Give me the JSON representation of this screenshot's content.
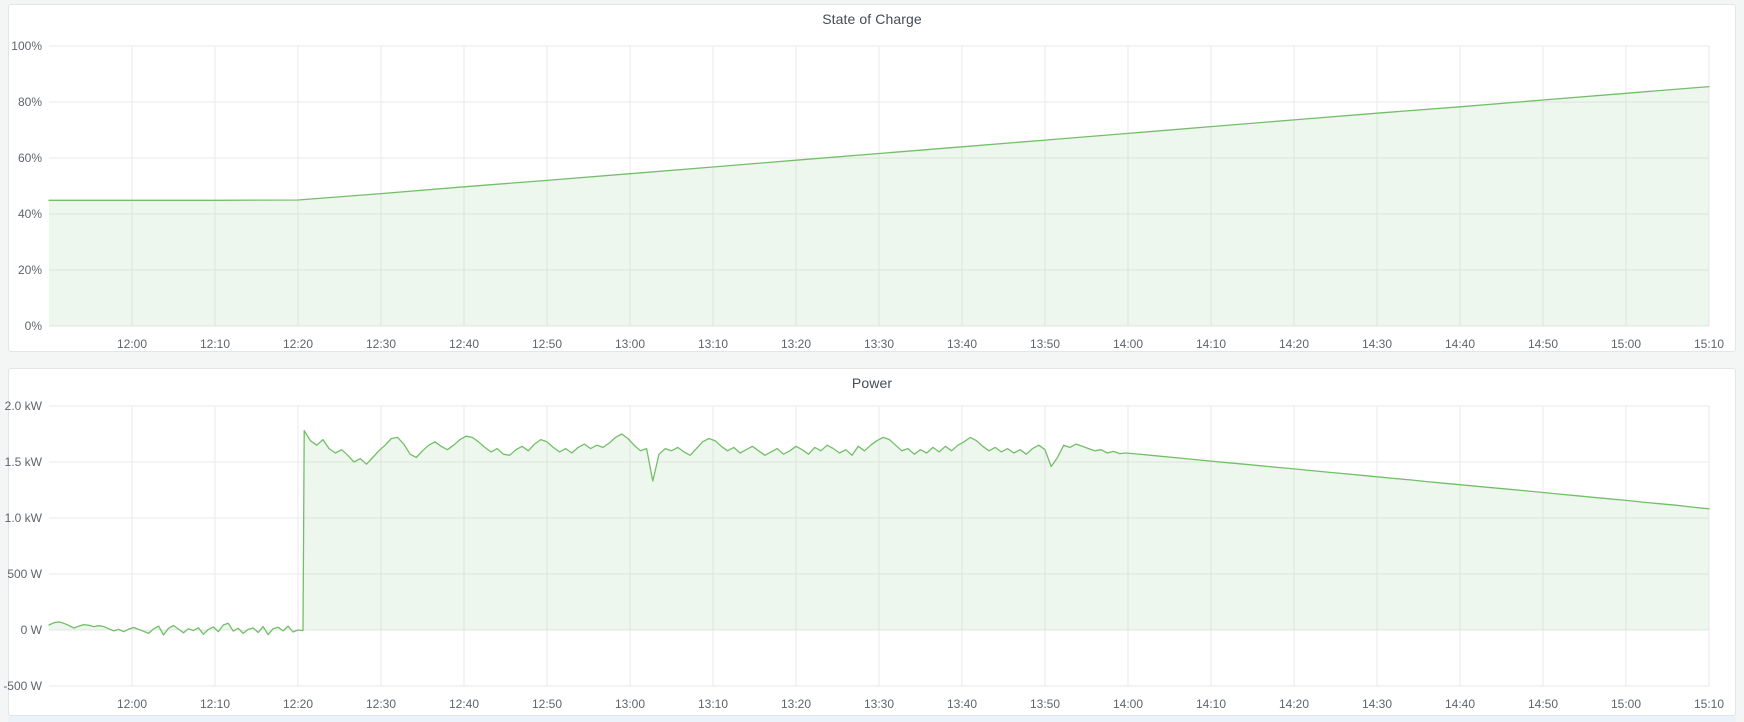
{
  "colors": {
    "page_background": "#f4f5f5",
    "panel_background": "#ffffff",
    "panel_border": "#e3e5e8",
    "grid_line": "#e9eaec",
    "axis_text": "#5f646d",
    "title_text": "#464c54",
    "series_green": "#73bf69"
  },
  "panels": [
    {
      "title": "State of Charge"
    },
    {
      "title": "Power"
    }
  ],
  "chart_data": [
    {
      "type": "area",
      "title": "State of Charge",
      "unit": "percent",
      "ylim": [
        0,
        100
      ],
      "x_domain_minutes": [
        -10,
        190
      ],
      "grid": true,
      "legend": "none",
      "x_ticks": [
        {
          "t": 0,
          "label": "12:00"
        },
        {
          "t": 10,
          "label": "12:10"
        },
        {
          "t": 20,
          "label": "12:20"
        },
        {
          "t": 30,
          "label": "12:30"
        },
        {
          "t": 40,
          "label": "12:40"
        },
        {
          "t": 50,
          "label": "12:50"
        },
        {
          "t": 60,
          "label": "13:00"
        },
        {
          "t": 70,
          "label": "13:10"
        },
        {
          "t": 80,
          "label": "13:20"
        },
        {
          "t": 90,
          "label": "13:30"
        },
        {
          "t": 100,
          "label": "13:40"
        },
        {
          "t": 110,
          "label": "13:50"
        },
        {
          "t": 120,
          "label": "14:00"
        },
        {
          "t": 130,
          "label": "14:10"
        },
        {
          "t": 140,
          "label": "14:20"
        },
        {
          "t": 150,
          "label": "14:30"
        },
        {
          "t": 160,
          "label": "14:40"
        },
        {
          "t": 170,
          "label": "14:50"
        },
        {
          "t": 180,
          "label": "15:00"
        },
        {
          "t": 190,
          "label": "15:10"
        }
      ],
      "y_ticks": [
        {
          "v": 0,
          "label": "0%"
        },
        {
          "v": 20,
          "label": "20%"
        },
        {
          "v": 40,
          "label": "40%"
        },
        {
          "v": 60,
          "label": "60%"
        },
        {
          "v": 80,
          "label": "80%"
        },
        {
          "v": 100,
          "label": "100%"
        }
      ],
      "series": [
        {
          "name": "State of Charge",
          "color": "#73bf69",
          "fill_opacity": 0.12,
          "baseline": 0,
          "segments": [
            {
              "t0": -10,
              "dt": 10,
              "values": [
                44.9,
                44.9,
                44.9,
                45.0,
                47.3,
                49.7,
                52.0,
                54.4,
                56.8,
                59.2,
                61.6,
                64.0,
                66.4,
                68.8,
                71.2,
                73.6,
                76.0,
                78.3,
                80.7,
                83.1,
                85.5
              ]
            }
          ]
        }
      ]
    },
    {
      "type": "area",
      "title": "Power",
      "unit": "watt",
      "ylim": [
        -500,
        2000
      ],
      "x_domain_minutes": [
        -10,
        190
      ],
      "grid": true,
      "legend": "none",
      "x_ticks": [
        {
          "t": 0,
          "label": "12:00"
        },
        {
          "t": 10,
          "label": "12:10"
        },
        {
          "t": 20,
          "label": "12:20"
        },
        {
          "t": 30,
          "label": "12:30"
        },
        {
          "t": 40,
          "label": "12:40"
        },
        {
          "t": 50,
          "label": "12:50"
        },
        {
          "t": 60,
          "label": "13:00"
        },
        {
          "t": 70,
          "label": "13:10"
        },
        {
          "t": 80,
          "label": "13:20"
        },
        {
          "t": 90,
          "label": "13:30"
        },
        {
          "t": 100,
          "label": "13:40"
        },
        {
          "t": 110,
          "label": "13:50"
        },
        {
          "t": 120,
          "label": "14:00"
        },
        {
          "t": 130,
          "label": "14:10"
        },
        {
          "t": 140,
          "label": "14:20"
        },
        {
          "t": 150,
          "label": "14:30"
        },
        {
          "t": 160,
          "label": "14:40"
        },
        {
          "t": 170,
          "label": "14:50"
        },
        {
          "t": 180,
          "label": "15:00"
        },
        {
          "t": 190,
          "label": "15:10"
        }
      ],
      "y_ticks": [
        {
          "v": -500,
          "label": "-500 W"
        },
        {
          "v": 0,
          "label": "0 W"
        },
        {
          "v": 500,
          "label": "500 W"
        },
        {
          "v": 1000,
          "label": "1.0 kW"
        },
        {
          "v": 1500,
          "label": "1.5 kW"
        },
        {
          "v": 2000,
          "label": "2.0 kW"
        }
      ],
      "series": [
        {
          "name": "Power",
          "color": "#73bf69",
          "fill_opacity": 0.12,
          "baseline": 0,
          "segments": [
            {
              "t0": -10,
              "dt": 0.6,
              "values": [
                45,
                65,
                72,
                60,
                40,
                18,
                35,
                48,
                42,
                30,
                38,
                30,
                12,
                -8,
                5,
                -15,
                8,
                22,
                5,
                -12,
                -30,
                10,
                35,
                -45,
                15,
                40,
                8,
                -25,
                12,
                -5,
                20,
                -38,
                5,
                28,
                -15,
                45,
                60,
                -10,
                15,
                -30,
                5,
                18,
                -22,
                30,
                -42,
                12,
                25,
                -8,
                35,
                -18,
                0,
                -5
              ]
            },
            {
              "t0": 20.75,
              "dt": 0.75,
              "values": [
                1780,
                1690,
                1650,
                1700,
                1620,
                1580,
                1610,
                1560,
                1500,
                1530,
                1480,
                1540,
                1600,
                1650,
                1710,
                1720,
                1660,
                1570,
                1540,
                1600,
                1650,
                1680,
                1640,
                1610,
                1650,
                1700,
                1730,
                1720,
                1680,
                1630,
                1590,
                1620,
                1570,
                1560,
                1610,
                1640,
                1600,
                1660,
                1700,
                1680,
                1630,
                1590,
                1620,
                1580,
                1630,
                1660,
                1620,
                1650,
                1630,
                1670,
                1720,
                1750,
                1710,
                1650,
                1600,
                1620,
                1330,
                1570,
                1620,
                1600,
                1630,
                1590,
                1560,
                1620,
                1680,
                1710,
                1690,
                1640,
                1600,
                1630,
                1580,
                1610,
                1640,
                1600,
                1560,
                1590,
                1620,
                1570,
                1600,
                1640,
                1610,
                1570,
                1630,
                1600,
                1650,
                1620,
                1580,
                1610,
                1560,
                1640,
                1600,
                1650,
                1690,
                1720,
                1700,
                1650,
                1600,
                1620,
                1570,
                1610,
                1580,
                1630,
                1590,
                1640,
                1600,
                1650,
                1680,
                1720,
                1690,
                1640,
                1600,
                1630,
                1590,
                1620,
                1580,
                1610,
                1570,
                1620,
                1650,
                1610,
                1460,
                1540,
                1650,
                1630,
                1660,
                1640,
                1620,
                1600,
                1610,
                1580,
                1595,
                1575,
                1580
              ]
            },
            {
              "t0": 122,
              "dt": 2,
              "values": [
                1565,
                1551,
                1537,
                1522,
                1508,
                1494,
                1480,
                1466,
                1452,
                1438,
                1424,
                1410,
                1396,
                1382,
                1368,
                1354,
                1340,
                1325,
                1311,
                1297,
                1283,
                1270,
                1256,
                1242,
                1228,
                1213,
                1199,
                1185,
                1171,
                1157,
                1142,
                1128,
                1114,
                1097,
                1082
              ]
            }
          ]
        }
      ]
    }
  ]
}
